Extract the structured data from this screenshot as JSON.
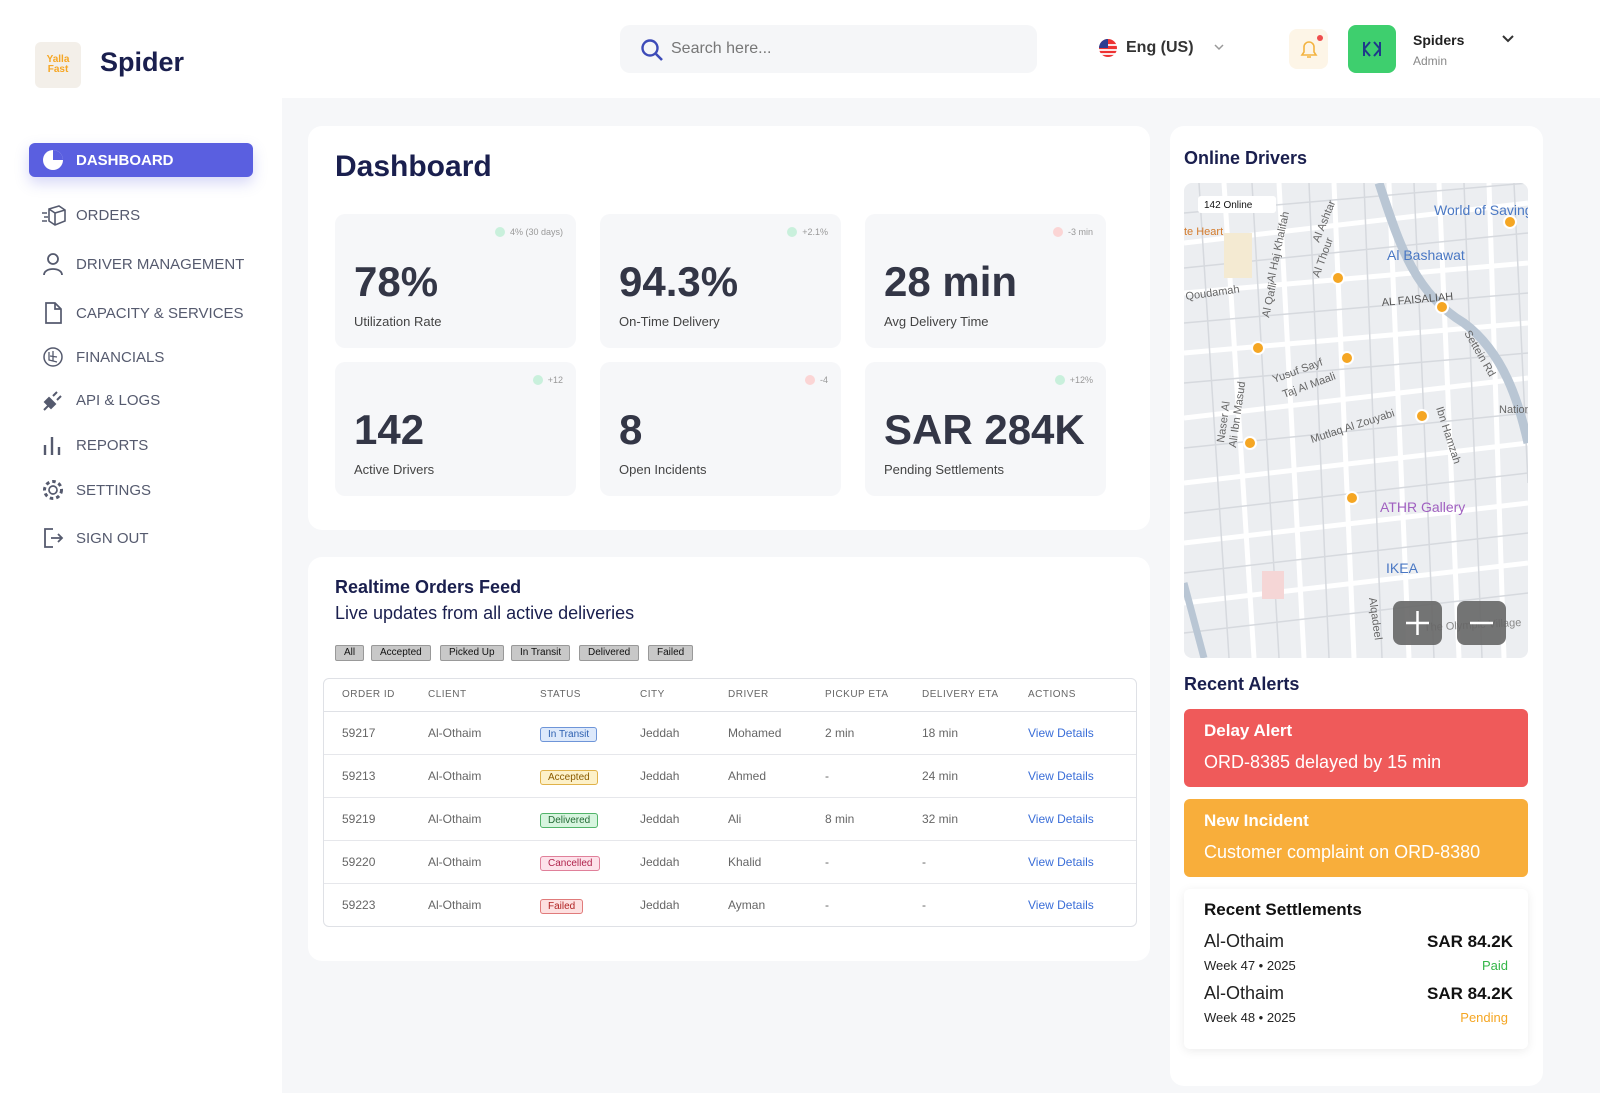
{
  "brand": {
    "logo": "Yalla Fast",
    "name": "Spider"
  },
  "header": {
    "search_placeholder": "Search here...",
    "language": "Eng (US)",
    "user": {
      "name": "Spiders",
      "role": "Admin"
    }
  },
  "nav": [
    "DASHBOARD",
    "ORDERS",
    "DRIVER MANAGEMENT",
    "CAPACITY & SERVICES",
    "FINANCIALS",
    "API & LOGS",
    "REPORTS",
    "SETTINGS",
    "SIGN OUT"
  ],
  "dashboard": {
    "title": "Dashboard",
    "kpis": [
      {
        "value": "78%",
        "label": "Utilization Rate",
        "trend": "4% (30 days)"
      },
      {
        "value": "94.3%",
        "label": "On-Time Delivery",
        "trend": "+2.1%"
      },
      {
        "value": "28 min",
        "label": "Avg Delivery Time",
        "trend": "-3 min"
      },
      {
        "value": "142",
        "label": "Active Drivers",
        "trend": "+12"
      },
      {
        "value": "8",
        "label": "Open Incidents",
        "trend": "-4"
      },
      {
        "value": "SAR 284K",
        "label": "Pending Settlements",
        "trend": "+12%"
      }
    ]
  },
  "orders_feed": {
    "title": "Realtime Orders Feed",
    "subtitle": "Live updates from all active deliveries",
    "filters": [
      "All",
      "Accepted",
      "Picked Up",
      "In Transit",
      "Delivered",
      "Failed"
    ],
    "table": {
      "columns": [
        "ORDER ID",
        "CLIENT",
        "STATUS",
        "CITY",
        "DRIVER",
        "PICKUP ETA",
        "DELIVERY ETA",
        "ACTIONS"
      ],
      "rows": [
        [
          "59217",
          "Al-Othaim",
          "In Transit",
          "Jeddah",
          "Mohamed",
          "2 min",
          "18 min",
          "View Details"
        ],
        [
          "59213",
          "Al-Othaim",
          "Accepted",
          "Jeddah",
          "Ahmed",
          "-",
          "24 min",
          "View Details"
        ],
        [
          "59219",
          "Al-Othaim",
          "Delivered",
          "Jeddah",
          "Ali",
          "8 min",
          "32 min",
          "View Details"
        ],
        [
          "59220",
          "Al-Othaim",
          "Cancelled",
          "Jeddah",
          "Khalid",
          "-",
          "-",
          "View Details"
        ],
        [
          "59223",
          "Al-Othaim",
          "Failed",
          "Jeddah",
          "Ayman",
          "-",
          "-",
          "View Details"
        ]
      ]
    }
  },
  "online_drivers": {
    "title": "Online Drivers",
    "map": {
      "badge": "142 Online",
      "labels": [
        "World of Saving",
        "te Heart",
        "Al Ashtar",
        "Al Haj Khalifah",
        "Al Thour",
        "Al Bashawat",
        "Qoudamah",
        "Al Qafli",
        "AL FAISALIAH",
        "Settein Rd",
        "Yusuf Sayf",
        "Taj Al Maali",
        "Ali Ibn Masud",
        "Naser Al",
        "Mutlaq Al Zouyabi",
        "Ibn Hamzah",
        "Nation",
        "ATHR Gallery",
        "IKEA",
        "The Olympic Village",
        "Alqadeel"
      ]
    }
  },
  "alerts": {
    "title": "Recent Alerts",
    "items": [
      {
        "title": "Delay Alert",
        "message": "ORD-8385 delayed by 15 min"
      },
      {
        "title": "New Incident",
        "message": "Customer complaint on ORD-8380"
      }
    ]
  },
  "settlements": {
    "title": "Recent Settlements",
    "items": [
      {
        "client": "Al-Othaim",
        "period": "Week 47 • 2025",
        "amount": "SAR 84.2K",
        "status": "Paid"
      },
      {
        "client": "Al-Othaim",
        "period": "Week 48 • 2025",
        "amount": "SAR 84.2K",
        "status": "Pending"
      }
    ]
  }
}
